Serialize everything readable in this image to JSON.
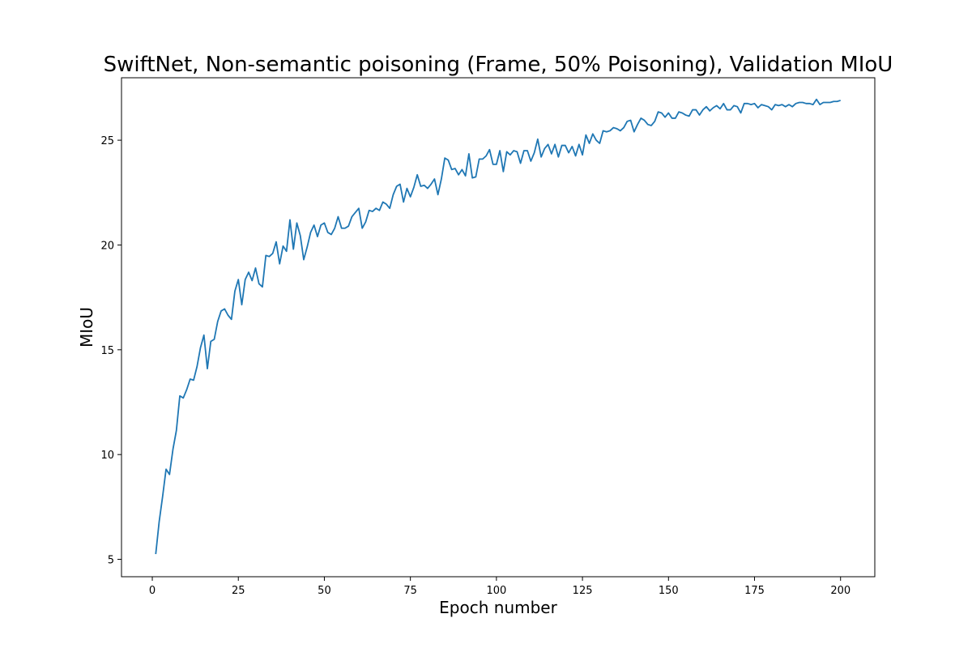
{
  "chart_data": {
    "type": "line",
    "title": "SwiftNet, Non-semantic poisoning (Frame, 50% Poisoning), Validation MIoU",
    "xlabel": "Epoch number",
    "ylabel": "MIoU",
    "xlim": [
      -8.95,
      209.95
    ],
    "ylim": [
      4.17,
      27.98
    ],
    "xticks": [
      0,
      25,
      50,
      75,
      100,
      125,
      150,
      175,
      200
    ],
    "yticks": [
      5,
      10,
      15,
      20,
      25
    ],
    "grid": false,
    "line_color": "#1f77b4",
    "x": [
      1,
      2,
      3,
      4,
      5,
      6,
      7,
      8,
      9,
      10,
      11,
      12,
      13,
      14,
      15,
      16,
      17,
      18,
      19,
      20,
      21,
      22,
      23,
      24,
      25,
      26,
      27,
      28,
      29,
      30,
      31,
      32,
      33,
      34,
      35,
      36,
      37,
      38,
      39,
      40,
      41,
      42,
      43,
      44,
      45,
      46,
      47,
      48,
      49,
      50,
      51,
      52,
      53,
      54,
      55,
      56,
      57,
      58,
      59,
      60,
      61,
      62,
      63,
      64,
      65,
      66,
      67,
      68,
      69,
      70,
      71,
      72,
      73,
      74,
      75,
      76,
      77,
      78,
      79,
      80,
      81,
      82,
      83,
      84,
      85,
      86,
      87,
      88,
      89,
      90,
      91,
      92,
      93,
      94,
      95,
      96,
      97,
      98,
      99,
      100,
      101,
      102,
      103,
      104,
      105,
      106,
      107,
      108,
      109,
      110,
      111,
      112,
      113,
      114,
      115,
      116,
      117,
      118,
      119,
      120,
      121,
      122,
      123,
      124,
      125,
      126,
      127,
      128,
      129,
      130,
      131,
      132,
      133,
      134,
      135,
      136,
      137,
      138,
      139,
      140,
      141,
      142,
      143,
      144,
      145,
      146,
      147,
      148,
      149,
      150,
      151,
      152,
      153,
      154,
      155,
      156,
      157,
      158,
      159,
      160,
      161,
      162,
      163,
      164,
      165,
      166,
      167,
      168,
      169,
      170,
      171,
      172,
      173,
      174,
      175,
      176,
      177,
      178,
      179,
      180,
      181,
      182,
      183,
      184,
      185,
      186,
      187,
      188,
      189,
      190,
      191,
      192,
      193,
      194,
      195,
      196,
      197,
      198,
      199,
      200
    ],
    "y": [
      5.25,
      6.8,
      8.0,
      9.3,
      9.05,
      10.25,
      11.15,
      12.8,
      12.7,
      13.1,
      13.6,
      13.55,
      14.2,
      15.1,
      15.7,
      14.1,
      15.4,
      15.5,
      16.35,
      16.85,
      16.95,
      16.65,
      16.45,
      17.8,
      18.35,
      17.15,
      18.35,
      18.7,
      18.3,
      18.9,
      18.15,
      18.0,
      19.5,
      19.45,
      19.6,
      20.15,
      19.1,
      19.95,
      19.7,
      21.2,
      19.8,
      21.05,
      20.45,
      19.3,
      19.9,
      20.6,
      20.95,
      20.4,
      20.95,
      21.05,
      20.6,
      20.5,
      20.8,
      21.35,
      20.8,
      20.8,
      20.9,
      21.35,
      21.55,
      21.75,
      20.8,
      21.1,
      21.65,
      21.6,
      21.75,
      21.65,
      22.05,
      21.95,
      21.75,
      22.4,
      22.8,
      22.9,
      22.05,
      22.7,
      22.3,
      22.75,
      23.35,
      22.8,
      22.85,
      22.7,
      22.9,
      23.15,
      22.4,
      23.15,
      24.15,
      24.05,
      23.6,
      23.65,
      23.35,
      23.6,
      23.3,
      24.35,
      23.2,
      23.25,
      24.1,
      24.1,
      24.25,
      24.55,
      23.85,
      23.85,
      24.5,
      23.5,
      24.45,
      24.3,
      24.5,
      24.45,
      23.9,
      24.5,
      24.5,
      24.0,
      24.4,
      25.05,
      24.2,
      24.6,
      24.8,
      24.35,
      24.8,
      24.2,
      24.75,
      24.75,
      24.4,
      24.7,
      24.25,
      24.8,
      24.3,
      25.25,
      24.85,
      25.3,
      25.0,
      24.85,
      25.45,
      25.4,
      25.45,
      25.6,
      25.55,
      25.45,
      25.6,
      25.9,
      25.95,
      25.4,
      25.75,
      26.05,
      25.95,
      25.75,
      25.7,
      25.9,
      26.35,
      26.3,
      26.1,
      26.3,
      26.05,
      26.05,
      26.35,
      26.3,
      26.2,
      26.15,
      26.45,
      26.45,
      26.2,
      26.45,
      26.6,
      26.4,
      26.55,
      26.65,
      26.5,
      26.75,
      26.45,
      26.45,
      26.65,
      26.6,
      26.3,
      26.75,
      26.75,
      26.7,
      26.75,
      26.55,
      26.7,
      26.65,
      26.6,
      26.45,
      26.7,
      26.65,
      26.7,
      26.6,
      26.7,
      26.6,
      26.75,
      26.8,
      26.8,
      26.75,
      26.75,
      26.7,
      26.95,
      26.7,
      26.8,
      26.8,
      26.8,
      26.85,
      26.85,
      26.9
    ]
  }
}
